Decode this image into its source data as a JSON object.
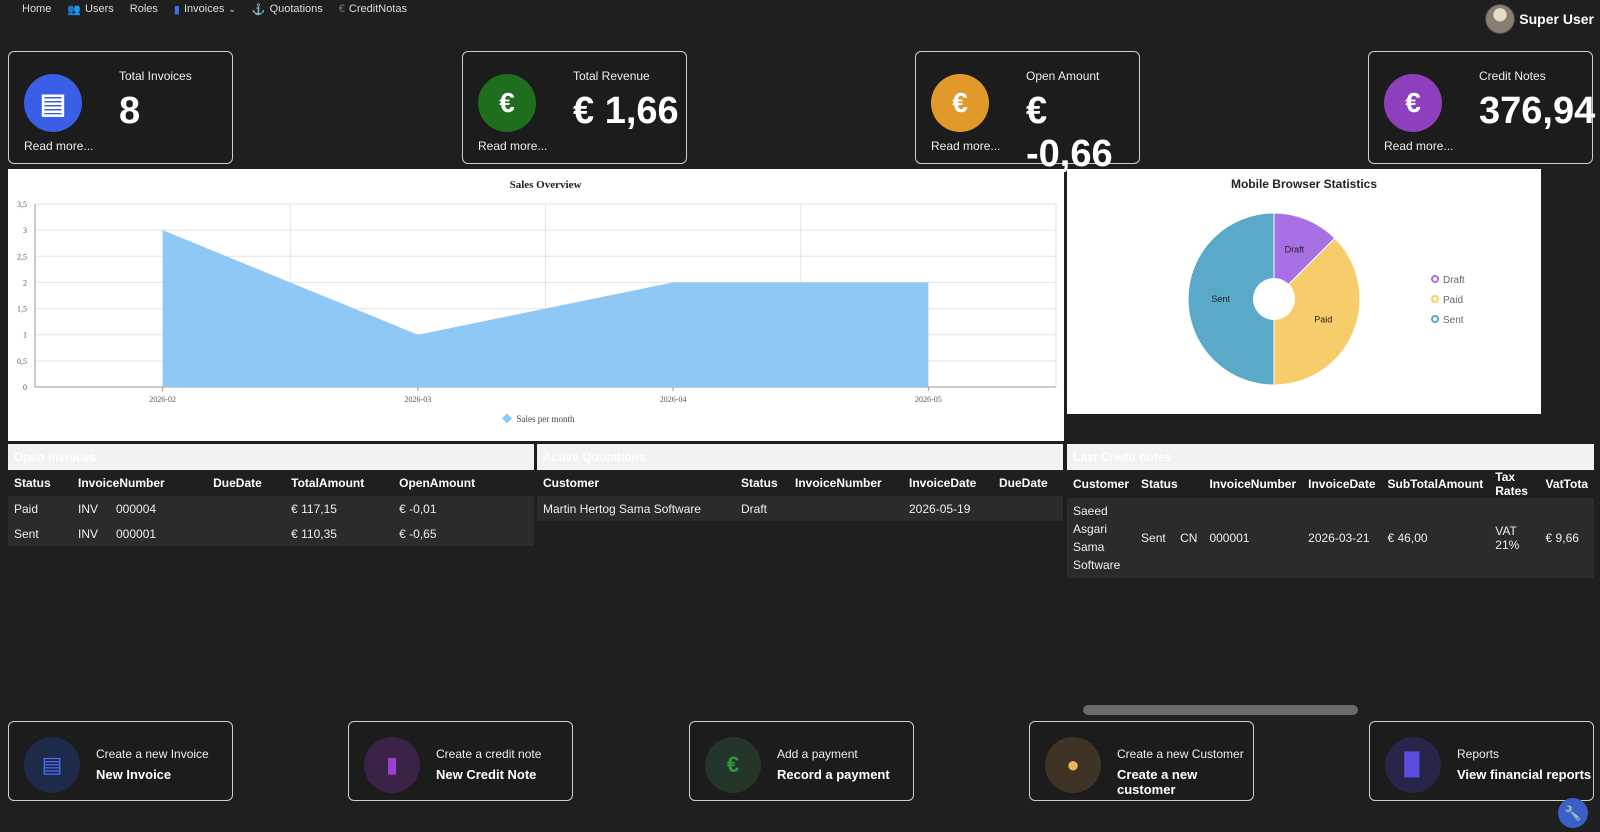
{
  "nav": {
    "items": [
      {
        "label": "Home",
        "icon": ""
      },
      {
        "label": "Users",
        "icon": "users-icon"
      },
      {
        "label": "Roles",
        "icon": ""
      },
      {
        "label": "Invoices",
        "icon": "document-icon"
      },
      {
        "label": "Quotations",
        "icon": "anchor-icon"
      },
      {
        "label": "CreditNotas",
        "icon": "euro-icon"
      }
    ],
    "user_name": "Super User"
  },
  "stats": [
    {
      "title": "Total Invoices",
      "value": "8",
      "more": "Read more...",
      "color": "#3a5ee6",
      "icon": "receipt-icon"
    },
    {
      "title": "Total Revenue",
      "value": "€ 1,66",
      "more": "Read more...",
      "color": "#1e6e1e",
      "icon": "euro-icon"
    },
    {
      "title": "Open Amount",
      "value": "€ -0,66",
      "more": "Read more...",
      "color": "#e19a2a",
      "icon": "euro-icon"
    },
    {
      "title": "Credit Notes",
      "value": "376,94",
      "more": "Read more...",
      "color": "#8d3fbd",
      "icon": "euro-icon"
    }
  ],
  "sales_chart": {
    "chart_data": {
      "type": "area",
      "title": "Sales Overview",
      "x": [
        "2026-02",
        "2026-03",
        "2026-04",
        "2026-05"
      ],
      "series": [
        {
          "name": "Sales per month",
          "values": [
            3,
            1,
            2,
            2
          ],
          "color": "#90c8f5"
        }
      ],
      "ylim": [
        0,
        3.5
      ],
      "yticks": [
        "0",
        "0,5",
        "1",
        "1,5",
        "2",
        "2,5",
        "3",
        "3,5"
      ],
      "grid": true,
      "legend": "bottom"
    }
  },
  "pie_chart": {
    "chart_data": {
      "type": "pie",
      "title": "Mobile Browser Statistics",
      "categories": [
        "Draft",
        "Paid",
        "Sent"
      ],
      "values": [
        1,
        3,
        4
      ],
      "colors": [
        "#a970e6",
        "#f6cd6a",
        "#5aa9c9"
      ],
      "legend": "right"
    }
  },
  "open_invoices": {
    "title": "Open Invoices",
    "columns": [
      "Status",
      "InvoiceNumber",
      "DueDate",
      "TotalAmount",
      "OpenAmount"
    ],
    "rows": [
      {
        "status": "Paid",
        "prefix": "INV",
        "number": "000004",
        "due": "",
        "total": "€ 117,15",
        "open": "€ -0,01"
      },
      {
        "status": "Sent",
        "prefix": "INV",
        "number": "000001",
        "due": "",
        "total": "€ 110,35",
        "open": "€ -0,65"
      }
    ]
  },
  "active_quotations": {
    "title": "Active Quotations",
    "columns": [
      "Customer",
      "Status",
      "InvoiceNumber",
      "InvoiceDate",
      "DueDate"
    ],
    "rows": [
      {
        "customer": "Martin Hertog Sama Software",
        "status": "Draft",
        "number": "",
        "date": "2026-05-19",
        "due": ""
      }
    ]
  },
  "last_credit_notes": {
    "title": "Last Credit notes",
    "columns": [
      "Customer",
      "Status",
      "InvoiceNumber",
      "InvoiceDate",
      "SubTotalAmount",
      "Tax Rates",
      "VatTota"
    ],
    "rows": [
      {
        "customer_lines": [
          "Saeed",
          "Asgari",
          "Sama",
          "Software"
        ],
        "status": "Sent",
        "prefix": "CN",
        "number": "000001",
        "date": "2026-03-21",
        "subtotal": "€ 46,00",
        "tax": "VAT 21%",
        "vat": "€ 9,66"
      }
    ]
  },
  "actions": [
    {
      "line1": "Create a new Invoice",
      "line2": "New Invoice",
      "icon": "document-icon",
      "color": "#4a6cf0",
      "bg": "#1e2a4a"
    },
    {
      "line1": "Create a credit note",
      "line2": "New Credit Note",
      "icon": "file-icon",
      "color": "#9b3fd0",
      "bg": "#3a2346"
    },
    {
      "line1": "Add a payment",
      "line2": "Record a payment",
      "icon": "euro-icon",
      "color": "#2e9a3a",
      "bg": "#24362a"
    },
    {
      "line1": "Create a new Customer",
      "line2": "Create a new customer",
      "icon": "user-icon",
      "color": "#f0b45a",
      "bg": "#3f3326"
    },
    {
      "line1": "Reports",
      "line2": "View financial reports",
      "icon": "bar-chart-icon",
      "color": "#5b4ee0",
      "bg": "#27264a"
    }
  ]
}
